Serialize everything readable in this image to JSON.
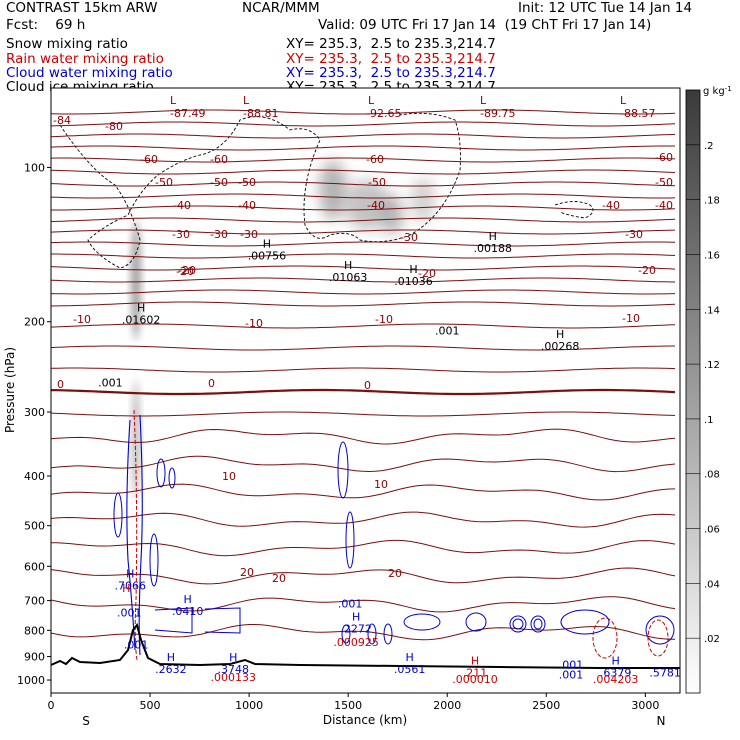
{
  "header": {
    "model": "CONTRAST 15km ARW",
    "org": "NCAR/MMM",
    "init": "Init: 12 UTC Tue 14 Jan 14",
    "fcst": "Fcst:    69 h",
    "valid": "Valid: 09 UTC Fri 17 Jan 14  (19 ChT Fri 17 Jan 14)",
    "fields": [
      {
        "name": "Snow mixing ratio",
        "xy": "XY= 235.3,  2.5 to 235.3,214.7",
        "color": "#000000"
      },
      {
        "name": "Rain water mixing ratio",
        "xy": "XY= 235.3,  2.5 to 235.3,214.7",
        "color": "#cc0000"
      },
      {
        "name": "Cloud water mixing ratio",
        "xy": "XY= 235.3,  2.5 to 235.3,214.7",
        "color": "#0000cc"
      },
      {
        "name": "Cloud ice mixing ratio",
        "xy": "XY= 235.3,  2.5 to 235.3,214.7",
        "color": "#000000"
      }
    ]
  },
  "chart_data": {
    "type": "cross-section",
    "xlabel": "Distance (km)",
    "ylabel": "Pressure (hPa)",
    "xlim": [
      0,
      3175
    ],
    "ylim": [
      1060,
      70
    ],
    "y_log": true,
    "xticks": [
      0,
      500,
      1000,
      1500,
      2000,
      2500,
      3000
    ],
    "yticks": [
      100,
      200,
      300,
      400,
      500,
      600,
      700,
      800,
      900,
      1000
    ],
    "x_ends": [
      "S",
      "N"
    ],
    "colorbar": {
      "unit": "g kg",
      "unit_exp": "-1",
      "ticks": [
        ".02",
        ".04",
        ".06",
        ".08",
        ".1",
        ".12",
        ".14",
        ".16",
        ".18",
        ".2"
      ],
      "max": 0.22
    },
    "temperature_labels": [
      "-80",
      "-60",
      "-60",
      "-50",
      "-50",
      "-50",
      "-40",
      "-40",
      "-40",
      "-40",
      "-30",
      "-30",
      "-30",
      "-30",
      "-20",
      "-20",
      "-20",
      "-10",
      "-10",
      "-10",
      "-10",
      "0",
      "0",
      "0",
      "10",
      "10",
      "20",
      "20",
      "20",
      "-84",
      "-87.49",
      "-88.81",
      "-92.65",
      "-89.75",
      "-88.57",
      "-60",
      "-60",
      "-50",
      "-50",
      "-40",
      "-30",
      "-20"
    ],
    "extrema_labels": [
      {
        "x": 455,
        "p": 200,
        "mark": "H",
        "value": ".01602",
        "color": "#000000"
      },
      {
        "x": 1090,
        "p": 150,
        "mark": "H",
        "value": ".00756",
        "color": "#000000"
      },
      {
        "x": 1500,
        "p": 165,
        "mark": "H",
        "value": ".01063",
        "color": "#000000"
      },
      {
        "x": 1830,
        "p": 168,
        "mark": "H",
        "value": ".01036",
        "color": "#000000"
      },
      {
        "x": 2230,
        "p": 145,
        "mark": "H",
        "value": ".00188",
        "color": "#000000"
      },
      {
        "x": 2570,
        "p": 225,
        "mark": "H",
        "value": ".00268",
        "color": "#000000"
      },
      {
        "x": 2000,
        "p": 210,
        "mark": "",
        "value": ".001",
        "color": "#000000"
      },
      {
        "x": 300,
        "p": 265,
        "mark": "",
        "value": ".001",
        "color": "#000000"
      },
      {
        "x": 400,
        "p": 660,
        "mark": "H",
        "value": ".7066",
        "color": "#0000cc"
      },
      {
        "x": 380,
        "p": 705,
        "mark": "H",
        "value": "",
        "color": "#cc0000"
      },
      {
        "x": 690,
        "p": 740,
        "mark": "H",
        "value": ".0410",
        "color": "#0000cc"
      },
      {
        "x": 1510,
        "p": 715,
        "mark": "",
        "value": ".001",
        "color": "#0000cc"
      },
      {
        "x": 1540,
        "p": 800,
        "mark": "H",
        "value": ".2272",
        "color": "#0000cc"
      },
      {
        "x": 1540,
        "p": 850,
        "mark": "",
        "value": ".000925",
        "color": "#cc0000"
      },
      {
        "x": 605,
        "p": 960,
        "mark": "H",
        "value": ".2632",
        "color": "#0000cc"
      },
      {
        "x": 920,
        "p": 960,
        "mark": "H",
        "value": ".3748",
        "color": "#0000cc"
      },
      {
        "x": 920,
        "p": 995,
        "mark": "",
        "value": ".000133",
        "color": "#cc0000"
      },
      {
        "x": 1810,
        "p": 960,
        "mark": "H",
        "value": ".0561",
        "color": "#0000cc"
      },
      {
        "x": 2140,
        "p": 975,
        "mark": "H",
        "value": ".211",
        "color": "#cc0000"
      },
      {
        "x": 2140,
        "p": 1005,
        "mark": "",
        "value": ".000010",
        "color": "#cc0000"
      },
      {
        "x": 2850,
        "p": 975,
        "mark": "H",
        "value": ".6379",
        "color": "#0000cc"
      },
      {
        "x": 2850,
        "p": 1005,
        "mark": "",
        "value": ".004203",
        "color": "#cc0000"
      },
      {
        "x": 3100,
        "p": 975,
        "mark": "",
        "value": ".5781",
        "color": "#0000cc"
      },
      {
        "x": 2625,
        "p": 940,
        "mark": "",
        "value": ".001",
        "color": "#0000cc"
      },
      {
        "x": 2625,
        "p": 985,
        "mark": "",
        "value": ".001",
        "color": "#0000cc"
      },
      {
        "x": 430,
        "p": 860,
        "mark": "",
        "value": ".001",
        "color": "#0000cc"
      },
      {
        "x": 395,
        "p": 745,
        "mark": "",
        "value": ".001",
        "color": "#0000cc"
      }
    ]
  }
}
